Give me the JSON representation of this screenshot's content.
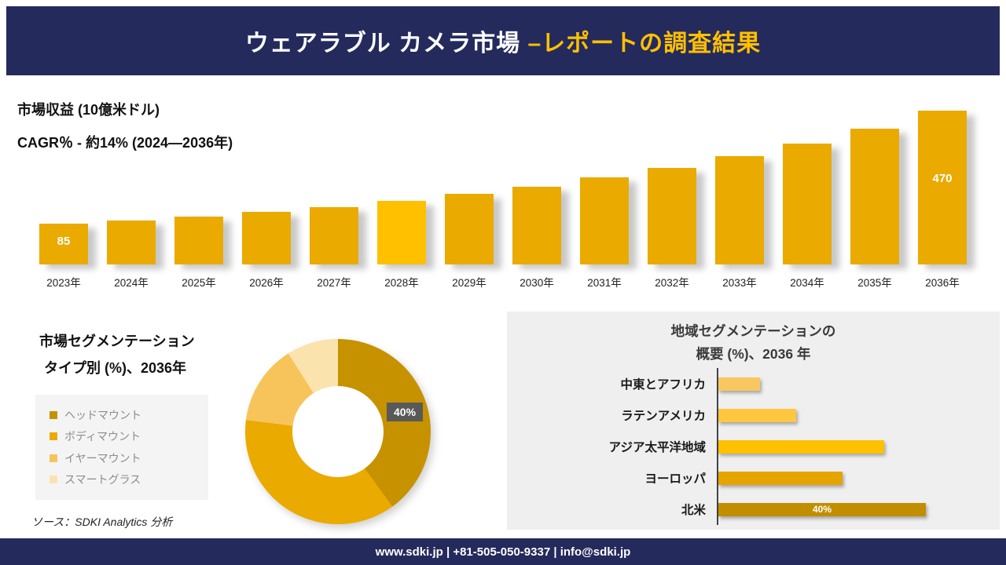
{
  "header": {
    "title_main": "ウェアラブル カメラ市場 ",
    "title_accent": "–レポートの調査結果"
  },
  "revenue": {
    "metric_label": "市場収益 (10億米ドル)",
    "cagr_label": "CAGR％ - 約14% (2024―2036年)"
  },
  "segmentation": {
    "title_line1": "市場セグメンテーション",
    "title_line2": "タイプ別 (%)、2036年",
    "source": "ソース：SDKI Analytics 分析"
  },
  "regional": {
    "title_line1": "地域セグメンテーションの",
    "title_line2": "概要 (%)、2036 年"
  },
  "footer": {
    "text": "www.sdki.jp | +81-505-050-9337 | info@sdki.jp"
  },
  "colors": {
    "navy": "#242A5C",
    "accent_gold": "#FFC000",
    "bar_gold": "#EAAA00",
    "panel_gray": "#EFEFEF",
    "callout_gray": "#595959"
  },
  "chart_data": [
    {
      "type": "bar",
      "title": "市場収益 (10億米ドル)",
      "subtitle": "CAGR％ - 約14% (2024―2036年)",
      "categories": [
        "2023年",
        "2024年",
        "2025年",
        "2026年",
        "2027年",
        "2028年",
        "2029年",
        "2030年",
        "2031年",
        "2032年",
        "2033年",
        "2034年",
        "2035年",
        "2036年"
      ],
      "values": [
        85,
        97,
        110,
        126,
        143,
        163,
        186,
        212,
        242,
        276,
        315,
        359,
        409,
        470
      ],
      "labeled_values": {
        "2023年": "85",
        "2036年": "470"
      },
      "bar_color": "#EAAA00",
      "highlight_index": 5,
      "highlight_color": "#FFC000",
      "ylim": [
        0,
        500
      ],
      "grid": false,
      "legend_position": "none"
    },
    {
      "type": "pie",
      "donut": true,
      "title": "市場セグメンテーション タイプ別 (%)、2036年",
      "labels": [
        "ヘッドマウント",
        "ボディマウント",
        "イヤーマウント",
        "スマートグラス"
      ],
      "values": [
        40,
        37,
        14,
        9
      ],
      "colors": [
        "#C69200",
        "#EAAA00",
        "#F7C45C",
        "#FBE3AE"
      ],
      "callout_label": "40%",
      "legend_position": "left"
    },
    {
      "type": "bar",
      "orientation": "horizontal",
      "title": "地域セグメンテーションの 概要 (%)、2036 年",
      "categories": [
        "中東とアフリカ",
        "ラテンアメリカ",
        "アジア太平洋地域",
        "ヨーロッパ",
        "北米"
      ],
      "values": [
        8,
        15,
        32,
        24,
        40
      ],
      "colors": [
        "#F9C75F",
        "#FFC640",
        "#FFC000",
        "#E5A400",
        "#C18E00"
      ],
      "data_label_index": 4,
      "data_label_text": "40%",
      "xlim": [
        0,
        45
      ],
      "grid": false
    }
  ]
}
